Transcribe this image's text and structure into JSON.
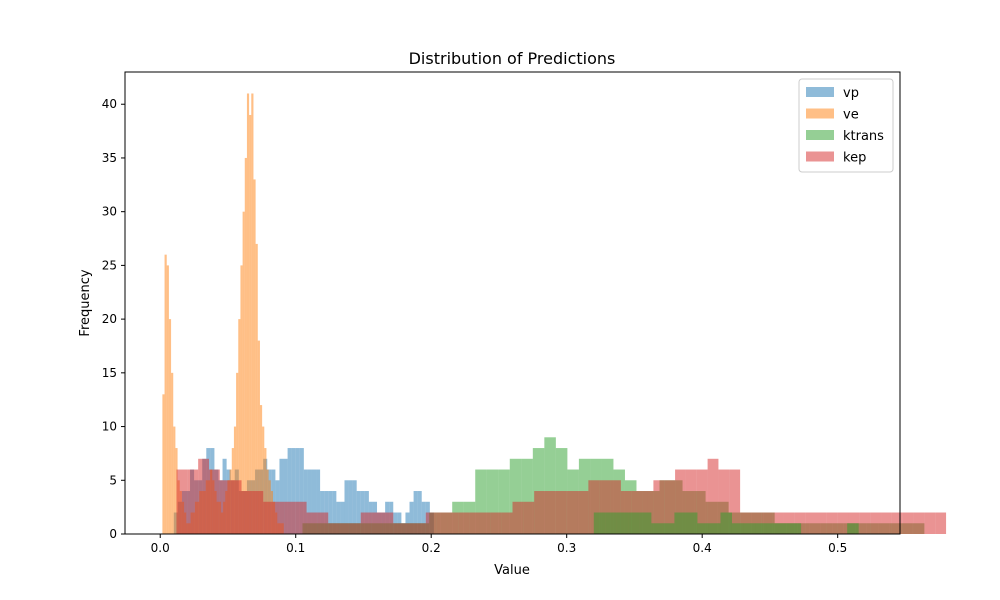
{
  "chart_data": {
    "type": "histogram",
    "title": "Distribution of Predictions",
    "xlabel": "Value",
    "ylabel": "Frequency",
    "xlim": [
      -0.026,
      0.546
    ],
    "ylim": [
      0,
      43
    ],
    "xticks": [
      0.0,
      0.1,
      0.2,
      0.3,
      0.4,
      0.5
    ],
    "xtick_labels": [
      "0.0",
      "0.1",
      "0.2",
      "0.3",
      "0.4",
      "0.5"
    ],
    "yticks": [
      0,
      5,
      10,
      15,
      20,
      25,
      30,
      35,
      40
    ],
    "ytick_labels": [
      "0",
      "5",
      "10",
      "15",
      "20",
      "25",
      "30",
      "35",
      "40"
    ],
    "legend_position": "top-right",
    "series": [
      {
        "name": "vp",
        "color": "#1f77b4",
        "bins_start": 0.01,
        "bin_width": 0.003,
        "counts": [
          2,
          3,
          4,
          4,
          6,
          5,
          5,
          7,
          8,
          8,
          6,
          5,
          7,
          6,
          5,
          6,
          4,
          4,
          5,
          5,
          6,
          6,
          7,
          6,
          6,
          5,
          7,
          7,
          8,
          8,
          8,
          8,
          6,
          6,
          6,
          6,
          4,
          4,
          4,
          4,
          3,
          3,
          5,
          5,
          5,
          4,
          4,
          4,
          3,
          3,
          2,
          2,
          3,
          3,
          2,
          2,
          1,
          2,
          3,
          4,
          4,
          3,
          3,
          2
        ]
      },
      {
        "name": "ve",
        "color": "#ff7f0e",
        "bins_start": 0.0,
        "bin_width": 0.0016,
        "counts": [
          0,
          13,
          26,
          25,
          20,
          15,
          10,
          8,
          5,
          4,
          3,
          2,
          1,
          1,
          2,
          2,
          3,
          3,
          4,
          4,
          4,
          5,
          5,
          6,
          5,
          4,
          3,
          3,
          2,
          3,
          4,
          5,
          6,
          8,
          10,
          15,
          20,
          25,
          30,
          35,
          41,
          39,
          41,
          33,
          27,
          18,
          12,
          10,
          8,
          6,
          5,
          4,
          3,
          2,
          1,
          1,
          1
        ]
      },
      {
        "name": "ktrans",
        "color": "#2ca02c",
        "bins_start": 0.105,
        "bin_width": 0.0085,
        "counts": [
          1,
          1,
          1,
          1,
          1,
          1,
          1,
          1,
          1,
          1,
          1,
          2,
          2,
          3,
          3,
          6,
          6,
          6,
          7,
          7,
          8,
          9,
          8,
          6,
          7,
          7,
          7,
          6,
          5,
          4,
          4,
          5,
          5,
          4,
          4,
          3,
          3,
          2,
          2,
          2,
          2,
          1,
          1,
          1,
          1,
          1,
          1,
          1,
          1,
          1,
          1,
          1,
          1,
          1,
          0,
          0,
          0,
          0,
          0,
          0,
          0,
          0,
          0,
          0,
          0,
          0,
          0,
          0,
          0,
          0,
          0,
          0,
          0,
          0,
          0,
          0,
          0,
          0,
          0,
          0,
          0,
          0,
          0,
          0,
          0,
          0,
          0,
          0,
          0,
          0,
          0,
          0,
          0,
          0,
          0,
          0,
          0,
          0,
          0,
          0,
          0,
          0,
          0,
          0,
          0,
          0,
          0,
          0,
          0,
          0,
          0,
          0,
          0,
          0,
          0,
          0,
          0,
          0,
          0,
          0,
          0,
          0,
          0,
          0,
          0,
          0,
          0,
          0,
          0,
          0,
          0,
          0,
          0,
          0,
          0,
          0,
          0,
          0,
          0,
          0,
          0,
          0,
          0,
          0,
          0,
          0,
          0,
          0,
          0,
          0,
          0,
          0,
          0,
          0,
          0,
          0,
          0,
          0,
          0,
          0,
          0,
          0,
          0,
          0,
          0,
          0,
          0,
          0,
          0,
          0,
          0,
          0,
          0,
          0,
          0,
          0,
          0,
          0,
          0,
          0,
          0,
          0,
          0,
          0,
          0,
          0,
          0,
          0,
          0,
          0,
          0,
          0,
          0,
          0,
          0,
          0,
          0,
          0,
          0,
          0,
          0,
          0,
          0,
          0,
          0,
          0,
          0,
          0,
          0,
          0,
          0,
          0,
          0,
          0,
          0,
          0,
          0
        ]
      },
      {
        "name": "kep",
        "color": "#d62728",
        "bins_start": 0.012,
        "bin_width": 0.008,
        "counts": [
          6,
          6,
          7,
          6,
          5,
          5,
          4,
          4,
          3,
          3,
          3,
          3,
          2,
          2,
          1,
          1,
          1,
          2,
          2,
          2,
          1,
          1,
          1,
          2,
          2,
          2,
          2,
          2,
          2,
          2,
          2,
          3,
          3,
          4,
          4,
          4,
          4,
          4,
          5,
          5,
          5,
          4,
          4,
          4,
          5,
          5,
          6,
          6,
          6,
          7,
          6,
          6,
          2,
          2,
          2,
          2,
          2,
          2,
          2,
          2,
          2,
          2,
          2,
          2,
          2,
          2,
          2,
          2,
          2,
          2,
          2
        ]
      },
      {
        "name": "ktrans",
        "color": "#2ca02c",
        "bins_start": 0.32,
        "bin_width": 0.0085,
        "counts": [
          2,
          2,
          2,
          2,
          2,
          1,
          1,
          2,
          2,
          1,
          1,
          2,
          1,
          1,
          1,
          1,
          1,
          1,
          0,
          0,
          0,
          0,
          1,
          0,
          0,
          0,
          0,
          0,
          0,
          0,
          0,
          0,
          0
        ]
      }
    ]
  }
}
